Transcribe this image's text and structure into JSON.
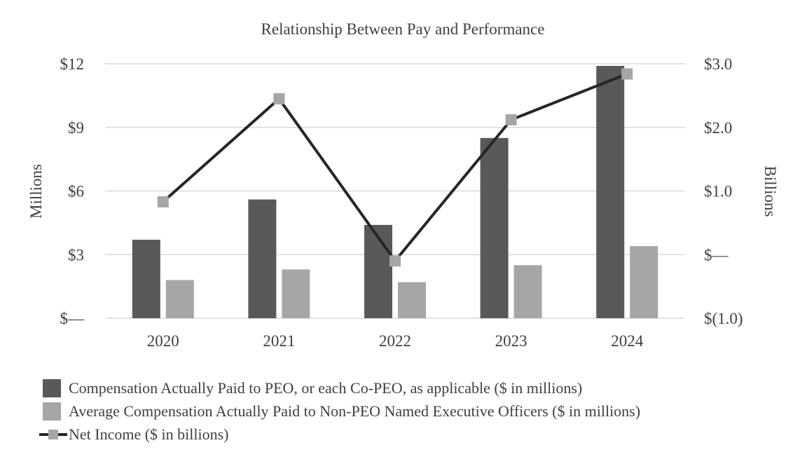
{
  "chart_data": {
    "type": "bar",
    "title": "Relationship Between Pay and Performance",
    "categories": [
      "2020",
      "2021",
      "2022",
      "2023",
      "2024"
    ],
    "ylabel_left": "Millions",
    "ylabel_right": "Billions",
    "ylim_left": [
      0,
      12
    ],
    "ylim_right": [
      -1.0,
      3.0
    ],
    "yticks_left": [
      0,
      3,
      6,
      9,
      12
    ],
    "ytick_labels_left": [
      "$—",
      "$3",
      "$6",
      "$9",
      "$12"
    ],
    "yticks_right": [
      -1.0,
      0,
      1.0,
      2.0,
      3.0
    ],
    "ytick_labels_right": [
      "$(1.0)",
      "$—",
      "$1.0",
      "$2.0",
      "$3.0"
    ],
    "grid": true,
    "legend_position": "bottom-left",
    "series": [
      {
        "name": "Compensation Actually Paid to PEO, or each Co-PEO, as applicable ($ in millions)",
        "type": "bar",
        "axis": "left",
        "color": "#595959",
        "values": [
          3.7,
          5.6,
          4.4,
          8.5,
          11.9
        ]
      },
      {
        "name": "Average Compensation Actually Paid to Non-PEO Named Executive Officers ($ in millions)",
        "type": "bar",
        "axis": "left",
        "color": "#a6a6a6",
        "values": [
          1.8,
          2.3,
          1.7,
          2.5,
          3.4
        ]
      },
      {
        "name": "Net Income ($ in billions)",
        "type": "line",
        "axis": "right",
        "color": "#262626",
        "marker_color": "#a6a6a6",
        "values": [
          0.83,
          2.45,
          -0.1,
          2.12,
          2.84
        ]
      }
    ]
  }
}
